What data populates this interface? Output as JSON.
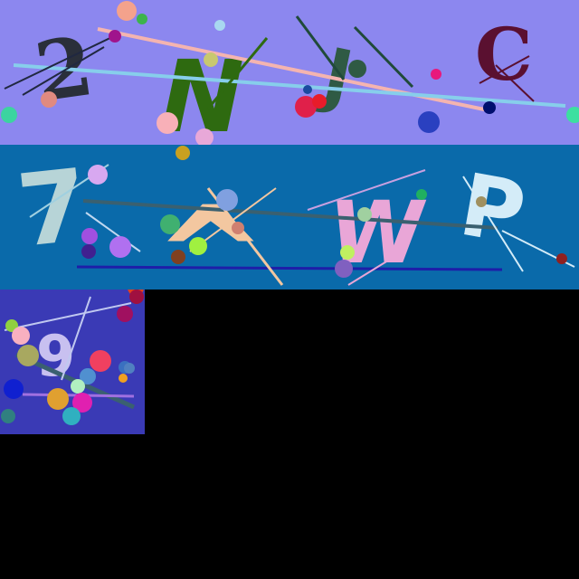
{
  "canvas": {
    "background": "#000000"
  },
  "captcha_row_1": {
    "background": "#8c87ef",
    "glyphs": [
      {
        "text": "2",
        "color": "#2a2f3a"
      },
      {
        "text": "N",
        "color": "#2e6a10"
      },
      {
        "text": "J",
        "color": "#2f5a44"
      },
      {
        "text": "C",
        "color": "#5a1030"
      }
    ]
  },
  "captcha_row_2": {
    "background": "#0a6aaa",
    "glyphs": [
      {
        "text": "7",
        "color": "#b7d4d7"
      },
      {
        "text": "^",
        "color": "#f3c7a0"
      },
      {
        "text": "W",
        "color": "#e9a6d7"
      },
      {
        "text": "P",
        "color": "#d4ecf8"
      }
    ]
  },
  "captcha_tile_3": {
    "background": "#3a3ab5",
    "glyphs": [
      {
        "text": "9",
        "color": "#c8c0f0"
      }
    ]
  }
}
